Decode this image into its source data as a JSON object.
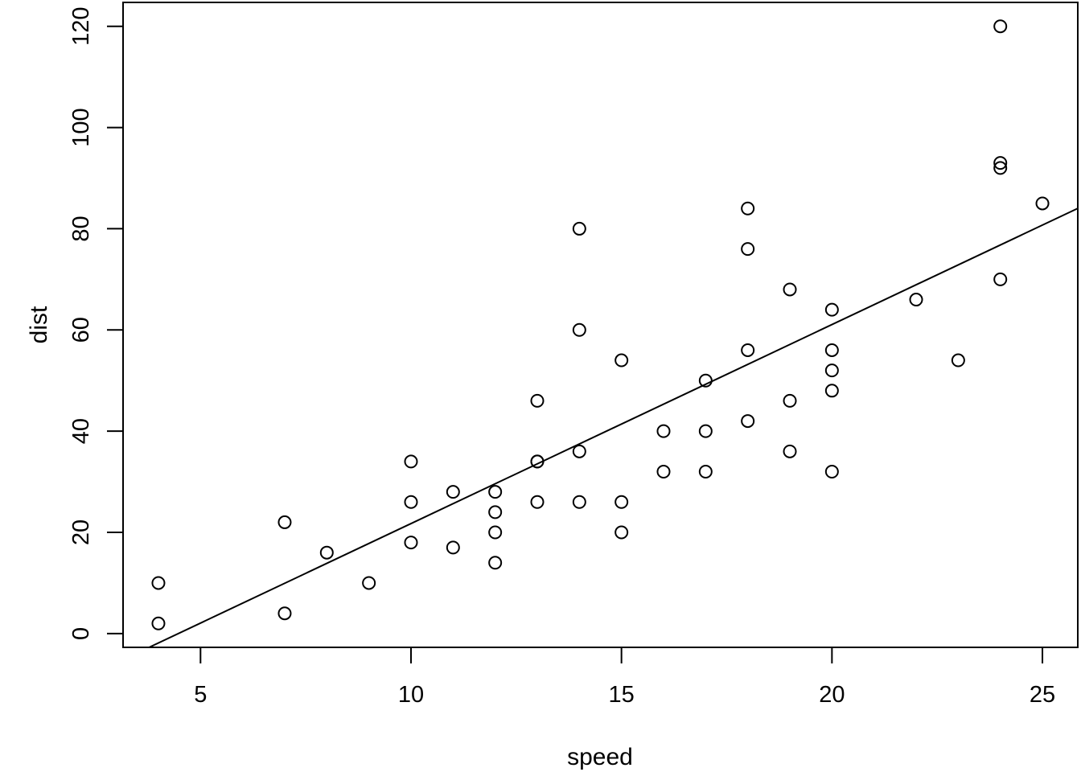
{
  "chart_data": {
    "type": "scatter",
    "title": "",
    "xlabel": "speed",
    "ylabel": "dist",
    "xlim": [
      3.16,
      25.84
    ],
    "ylim": [
      -2.72,
      124.72
    ],
    "x_ticks": [
      5,
      10,
      15,
      20,
      25
    ],
    "y_ticks": [
      0,
      20,
      40,
      60,
      80,
      100,
      120
    ],
    "grid": false,
    "legend": null,
    "marker": "open-circle",
    "point_color": "#000000",
    "line_color": "#000000",
    "background_color": "#ffffff",
    "points": [
      [
        4,
        2
      ],
      [
        4,
        10
      ],
      [
        7,
        4
      ],
      [
        7,
        22
      ],
      [
        8,
        16
      ],
      [
        9,
        10
      ],
      [
        10,
        18
      ],
      [
        10,
        26
      ],
      [
        10,
        34
      ],
      [
        11,
        17
      ],
      [
        11,
        28
      ],
      [
        12,
        14
      ],
      [
        12,
        20
      ],
      [
        12,
        24
      ],
      [
        12,
        28
      ],
      [
        13,
        26
      ],
      [
        13,
        34
      ],
      [
        13,
        34
      ],
      [
        13,
        46
      ],
      [
        14,
        26
      ],
      [
        14,
        36
      ],
      [
        14,
        60
      ],
      [
        14,
        80
      ],
      [
        15,
        20
      ],
      [
        15,
        26
      ],
      [
        15,
        54
      ],
      [
        16,
        32
      ],
      [
        16,
        40
      ],
      [
        17,
        32
      ],
      [
        17,
        40
      ],
      [
        17,
        50
      ],
      [
        18,
        42
      ],
      [
        18,
        56
      ],
      [
        18,
        76
      ],
      [
        18,
        84
      ],
      [
        19,
        36
      ],
      [
        19,
        46
      ],
      [
        19,
        68
      ],
      [
        20,
        32
      ],
      [
        20,
        48
      ],
      [
        20,
        52
      ],
      [
        20,
        56
      ],
      [
        20,
        64
      ],
      [
        22,
        66
      ],
      [
        23,
        54
      ],
      [
        24,
        70
      ],
      [
        24,
        92
      ],
      [
        24,
        93
      ],
      [
        24,
        120
      ],
      [
        25,
        85
      ]
    ],
    "fit_line": {
      "kind": "linear-regression",
      "intercept": -17.579,
      "slope": 3.932
    }
  }
}
